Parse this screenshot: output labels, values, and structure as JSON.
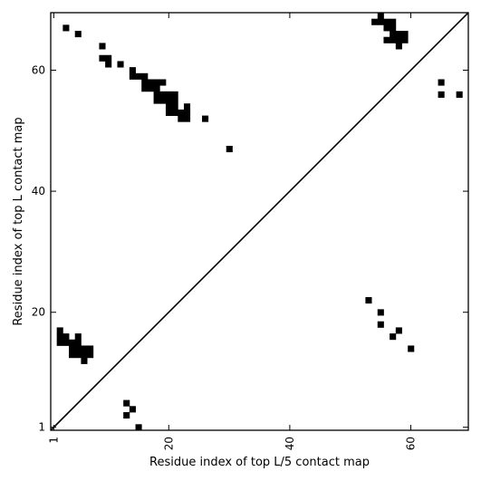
{
  "chart_data": {
    "type": "heatmap",
    "title": "",
    "xlabel": "Residue index of top L/5 contact map",
    "ylabel": "Residue index of top L contact map",
    "xlim": [
      0.5,
      69.5
    ],
    "ylim": [
      0.5,
      69.5
    ],
    "x_ticks": [
      1,
      20,
      40,
      60
    ],
    "y_ticks": [
      1,
      20,
      40,
      60
    ],
    "x_tick_labels": [
      "1",
      "20",
      "40",
      "60"
    ],
    "y_tick_labels": [
      "1",
      "20",
      "40",
      "60"
    ],
    "x_tick_rotation": -90,
    "diagonal": true,
    "grid": false,
    "cell_color": "#000000",
    "upper_triangle_points": [
      [
        3,
        67
      ],
      [
        5,
        66
      ],
      [
        9,
        64
      ],
      [
        9,
        62
      ],
      [
        10,
        62
      ],
      [
        10,
        61
      ],
      [
        12,
        61
      ],
      [
        14,
        60
      ],
      [
        14,
        59
      ],
      [
        15,
        59
      ],
      [
        16,
        59
      ],
      [
        16,
        58
      ],
      [
        17,
        58
      ],
      [
        18,
        58
      ],
      [
        19,
        58
      ],
      [
        16,
        57
      ],
      [
        17,
        57
      ],
      [
        18,
        57
      ],
      [
        18,
        56
      ],
      [
        19,
        56
      ],
      [
        20,
        56
      ],
      [
        21,
        56
      ],
      [
        18,
        55
      ],
      [
        19,
        55
      ],
      [
        20,
        55
      ],
      [
        21,
        55
      ],
      [
        20,
        54
      ],
      [
        21,
        54
      ],
      [
        23,
        54
      ],
      [
        20,
        53
      ],
      [
        21,
        53
      ],
      [
        22,
        53
      ],
      [
        23,
        53
      ],
      [
        22,
        52
      ],
      [
        23,
        52
      ],
      [
        26,
        52
      ],
      [
        30,
        47
      ],
      [
        55,
        69
      ],
      [
        54,
        68
      ],
      [
        55,
        68
      ],
      [
        56,
        68
      ],
      [
        57,
        68
      ],
      [
        56,
        67
      ],
      [
        57,
        67
      ],
      [
        57,
        66
      ],
      [
        58,
        66
      ],
      [
        59,
        66
      ],
      [
        56,
        65
      ],
      [
        57,
        65
      ],
      [
        58,
        65
      ],
      [
        59,
        65
      ],
      [
        58,
        64
      ],
      [
        65,
        58
      ],
      [
        65,
        56
      ],
      [
        68,
        56
      ]
    ],
    "lower_triangle_points": [
      [
        2,
        17
      ],
      [
        2,
        16
      ],
      [
        3,
        16
      ],
      [
        5,
        16
      ],
      [
        2,
        15
      ],
      [
        3,
        15
      ],
      [
        4,
        15
      ],
      [
        5,
        15
      ],
      [
        4,
        14
      ],
      [
        5,
        14
      ],
      [
        6,
        14
      ],
      [
        7,
        14
      ],
      [
        4,
        13
      ],
      [
        5,
        13
      ],
      [
        6,
        13
      ],
      [
        7,
        13
      ],
      [
        6,
        12
      ],
      [
        13,
        5
      ],
      [
        14,
        4
      ],
      [
        13,
        3
      ],
      [
        15,
        1
      ],
      [
        53,
        22
      ],
      [
        55,
        20
      ],
      [
        55,
        18
      ],
      [
        58,
        17
      ],
      [
        57,
        16
      ],
      [
        60,
        14
      ]
    ]
  }
}
